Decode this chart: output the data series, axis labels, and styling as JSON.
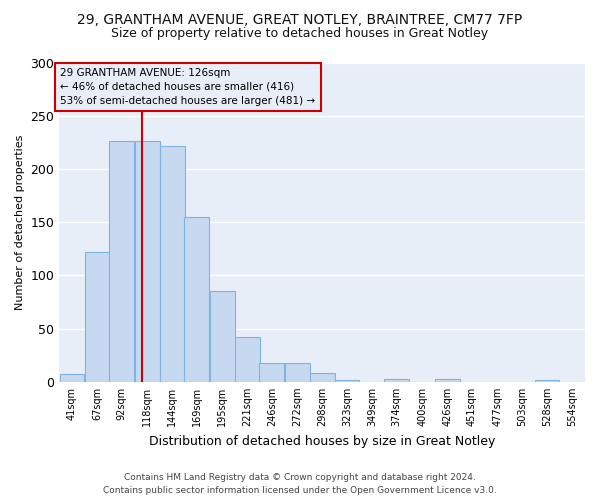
{
  "title_line1": "29, GRANTHAM AVENUE, GREAT NOTLEY, BRAINTREE, CM77 7FP",
  "title_line2": "Size of property relative to detached houses in Great Notley",
  "xlabel": "Distribution of detached houses by size in Great Notley",
  "ylabel": "Number of detached properties",
  "footer_line1": "Contains HM Land Registry data © Crown copyright and database right 2024.",
  "footer_line2": "Contains public sector information licensed under the Open Government Licence v3.0.",
  "annotation_line1": "29 GRANTHAM AVENUE: 126sqm",
  "annotation_line2": "← 46% of detached houses are smaller (416)",
  "annotation_line3": "53% of semi-detached houses are larger (481) →",
  "bar_left_edges": [
    41,
    67,
    92,
    118,
    144,
    169,
    195,
    221,
    246,
    272,
    298,
    323,
    349,
    374,
    400,
    426,
    451,
    477,
    503,
    528,
    554
  ],
  "bar_heights": [
    7,
    122,
    226,
    226,
    222,
    155,
    85,
    42,
    18,
    18,
    8,
    2,
    0,
    3,
    0,
    3,
    0,
    0,
    0,
    2,
    0
  ],
  "bar_color": "#c6d9f1",
  "bar_edgecolor": "#7eb4e4",
  "vline_x": 126,
  "vline_color": "#cc0000",
  "annotation_box_edgecolor": "#cc0000",
  "background_color": "#ffffff",
  "plot_bg_color": "#e8eef8",
  "grid_color": "#ffffff",
  "ylim": [
    0,
    300
  ],
  "yticks": [
    0,
    50,
    100,
    150,
    200,
    250,
    300
  ],
  "bin_width": 26,
  "title1_fontsize": 10,
  "title2_fontsize": 9,
  "ylabel_fontsize": 8,
  "xlabel_fontsize": 9,
  "tick_fontsize": 7,
  "footer_fontsize": 6.5,
  "annot_fontsize": 7.5
}
